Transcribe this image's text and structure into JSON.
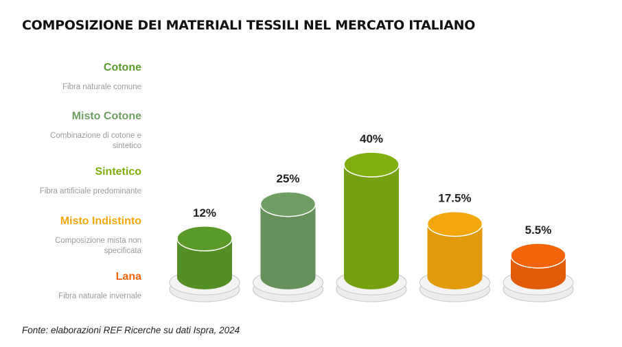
{
  "title": "COMPOSIZIONE DEI MATERIALI TESSILI NEL MERCATO ITALIANO",
  "source": "Fonte: elaborazioni REF Ricerche su dati Ispra, 2024",
  "legend": [
    {
      "name": "Cotone",
      "desc": "Fibra naturale comune",
      "color": "#5a9a2a"
    },
    {
      "name": "Misto Cotone",
      "desc": "Combinazione di cotone e sintetico",
      "color": "#6f9e63"
    },
    {
      "name": "Sintetico",
      "desc": "Fibra artificiale predominante",
      "color": "#7fae10"
    },
    {
      "name": "Misto Indistinto",
      "desc": "Composizione mista non specificata",
      "color": "#f4a70c"
    },
    {
      "name": "Lana",
      "desc": "Fibra naturale invernale",
      "color": "#f4640a"
    }
  ],
  "chart_data": {
    "type": "bar",
    "categories": [
      "Cotone",
      "Misto Cotone",
      "Sintetico",
      "Misto Indistinto",
      "Lana"
    ],
    "values": [
      12,
      25,
      40,
      17.5,
      5.5
    ],
    "labels": [
      "12%",
      "25%",
      "40%",
      "17.5%",
      "5.5%"
    ],
    "colors": [
      "#5a9a2a",
      "#6f9e63",
      "#7fae10",
      "#f4a70c",
      "#f4640a"
    ],
    "unit": "%",
    "legend_position": "left"
  }
}
